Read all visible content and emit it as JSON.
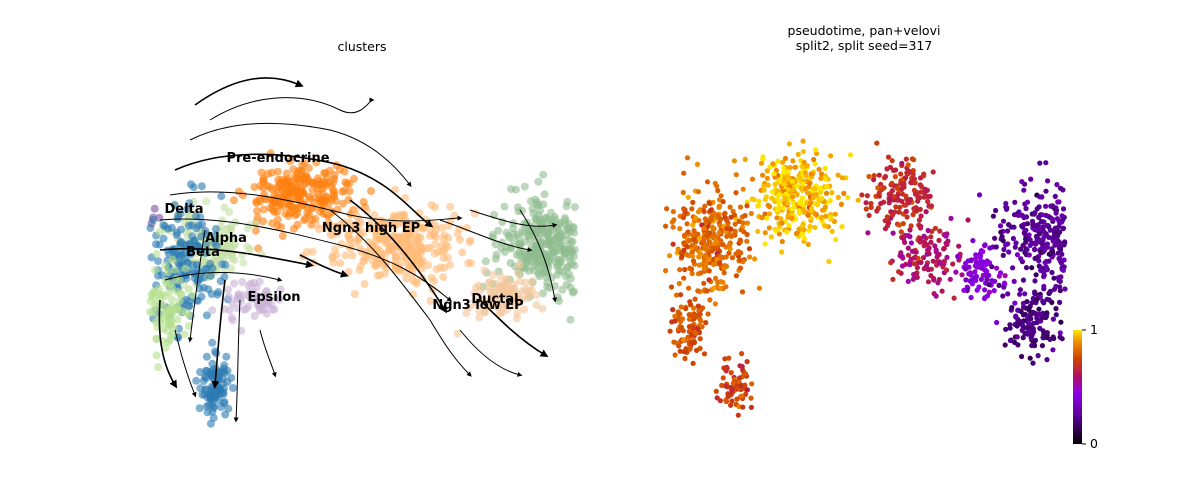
{
  "chart_data": [
    {
      "type": "scatter",
      "title": "clusters",
      "style": "embedding with velocity streamlines",
      "axes": "hidden",
      "legend": "on data",
      "clusters": [
        {
          "name": "Pre-endocrine",
          "color": "#ff7f0e",
          "center": [
            -0.6,
            0.55
          ],
          "spread": [
            0.42,
            0.28
          ],
          "n": 230
        },
        {
          "name": "Ngn3 high EP",
          "color": "#ffbb78",
          "center": [
            0.35,
            0.05
          ],
          "spread": [
            0.55,
            0.32
          ],
          "n": 300
        },
        {
          "name": "Ductal",
          "color": "#8fbc8f",
          "center": [
            1.85,
            0.05
          ],
          "spread": [
            0.38,
            0.4
          ],
          "n": 330
        },
        {
          "name": "Ngn3 low EP",
          "color": "#f4c79a",
          "center": [
            1.4,
            -0.45
          ],
          "spread": [
            0.28,
            0.22
          ],
          "n": 90
        },
        {
          "name": "Delta",
          "color": "#7b4fa0",
          "center": [
            -2.15,
            0.3
          ],
          "spread": [
            0.12,
            0.15
          ],
          "n": 45
        },
        {
          "name": "Alpha",
          "color": "#c5e0a5",
          "center": [
            -1.5,
            0.05
          ],
          "spread": [
            0.35,
            0.3
          ],
          "n": 140
        },
        {
          "name": "Beta",
          "color": "#2b7bb3",
          "center": [
            -1.75,
            -0.15
          ],
          "spread": [
            0.3,
            0.5
          ],
          "n": 160
        },
        {
          "name": "Epsilon",
          "color": "#c8b2d6",
          "center": [
            -1.1,
            -0.5
          ],
          "spread": [
            0.25,
            0.15
          ],
          "n": 60
        },
        {
          "name": "Beta",
          "color": "#2b7bb3",
          "center": [
            -1.45,
            -1.35
          ],
          "spread": [
            0.13,
            0.25
          ],
          "n": 90
        },
        {
          "name": "Alpha",
          "color": "#b5df8e",
          "center": [
            -1.95,
            -0.55
          ],
          "spread": [
            0.2,
            0.35
          ],
          "n": 90
        }
      ],
      "labels": [
        "Pre-endocrine",
        "Ngn3 high EP",
        "Delta",
        "Alpha",
        "Beta",
        "Epsilon",
        "Ductal",
        "Ngn3 low EP"
      ]
    },
    {
      "type": "scatter",
      "title": "pseudotime, pan+velovi",
      "subtitle": "split2, split seed=317",
      "axes": "hidden",
      "colormap": "gnuplot",
      "colorbar": {
        "min": 0,
        "max": 1,
        "ticks": [
          "1",
          "0"
        ],
        "placement": "right-bottom"
      },
      "clusters": [
        {
          "region": "top-center",
          "pseudotime": 0.95,
          "center": [
            -0.7,
            0.55
          ],
          "spread": [
            0.35,
            0.35
          ],
          "n": 330
        },
        {
          "region": "left-lobe",
          "pseudotime": 0.82,
          "center": [
            -1.55,
            0.1
          ],
          "spread": [
            0.35,
            0.45
          ],
          "n": 330
        },
        {
          "region": "left-bottom",
          "pseudotime": 0.78,
          "center": [
            -1.75,
            -0.8
          ],
          "spread": [
            0.15,
            0.25
          ],
          "n": 90
        },
        {
          "region": "left-tail",
          "pseudotime": 0.74,
          "center": [
            -1.3,
            -1.35
          ],
          "spread": [
            0.12,
            0.2
          ],
          "n": 70
        },
        {
          "region": "upper-right-arm",
          "pseudotime": 0.68,
          "center": [
            0.35,
            0.55
          ],
          "spread": [
            0.3,
            0.3
          ],
          "n": 150
        },
        {
          "region": "bridge",
          "pseudotime": 0.6,
          "center": [
            0.6,
            -0.05
          ],
          "spread": [
            0.3,
            0.3
          ],
          "n": 120
        },
        {
          "region": "transition",
          "pseudotime": 0.42,
          "center": [
            1.15,
            -0.2
          ],
          "spread": [
            0.2,
            0.25
          ],
          "n": 80
        },
        {
          "region": "right-blob",
          "pseudotime": 0.25,
          "center": [
            1.85,
            0.1
          ],
          "spread": [
            0.4,
            0.45
          ],
          "n": 360
        },
        {
          "region": "right-lower",
          "pseudotime": 0.2,
          "center": [
            1.7,
            -0.75
          ],
          "spread": [
            0.28,
            0.25
          ],
          "n": 120
        },
        {
          "region": "right-edge",
          "pseudotime": 0.08,
          "center": [
            2.45,
            -0.1
          ],
          "spread": [
            0.12,
            0.35
          ],
          "n": 90
        }
      ]
    }
  ]
}
